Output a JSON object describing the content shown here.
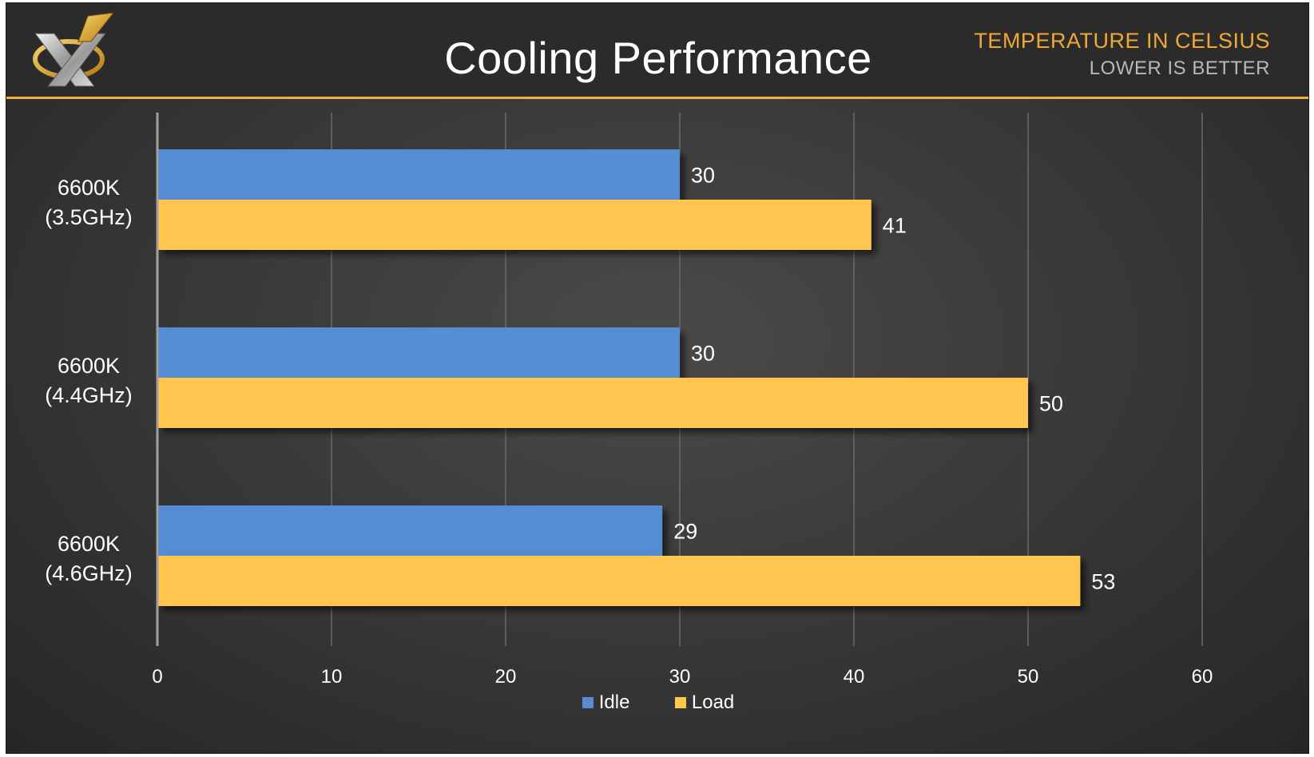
{
  "header": {
    "title": "Cooling Performance",
    "subtitle_primary": "TEMPERATURE IN CELSIUS",
    "subtitle_secondary": "LOWER IS BETTER",
    "logo_icon": "x-logo-icon"
  },
  "colors": {
    "idle": "#548dd4",
    "load": "#ffc54f",
    "accent": "#f2b233"
  },
  "chart_data": {
    "type": "bar",
    "orientation": "horizontal",
    "title": "Cooling Performance",
    "categories": [
      "6600K\n(3.5GHz)",
      "6600K\n(4.4GHz)",
      "6600K\n(4.6GHz)"
    ],
    "series": [
      {
        "name": "Idle",
        "values": [
          30,
          30,
          29
        ]
      },
      {
        "name": "Load",
        "values": [
          41,
          50,
          53
        ]
      }
    ],
    "xlim": [
      0,
      60
    ],
    "xticks": [
      0,
      10,
      20,
      30,
      40,
      50,
      60
    ],
    "grid": true,
    "legend_position": "bottom"
  }
}
